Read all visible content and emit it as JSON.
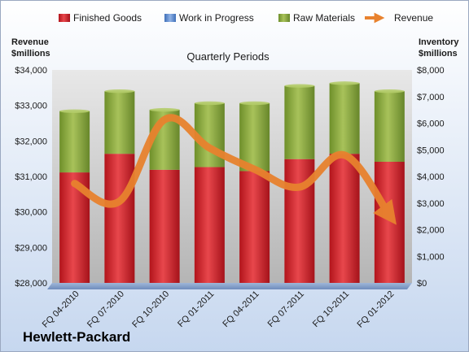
{
  "chart_data": {
    "type": "bar",
    "stacked": true,
    "subtitle": "Quarterly Periods",
    "brand": "Hewlett-Packard",
    "left_axis": {
      "title_line1": "Revenue",
      "title_line2": "$millions",
      "range": [
        28000,
        34000
      ],
      "ticks": [
        "$28,000",
        "$29,000",
        "$30,000",
        "$31,000",
        "$32,000",
        "$33,000",
        "$34,000"
      ],
      "tick_values": [
        28000,
        29000,
        30000,
        31000,
        32000,
        33000,
        34000
      ]
    },
    "right_axis": {
      "title_line1": "Inventory",
      "title_line2": "$millions",
      "range": [
        0,
        8000
      ],
      "ticks": [
        "$0",
        "$1,000",
        "$2,000",
        "$3,000",
        "$4,000",
        "$5,000",
        "$6,000",
        "$7,000",
        "$8,000"
      ],
      "tick_values": [
        0,
        1000,
        2000,
        3000,
        4000,
        5000,
        6000,
        7000,
        8000
      ]
    },
    "categories": [
      "FQ 04-2010",
      "FQ 07-2010",
      "FQ 10-2010",
      "FQ 01-2011",
      "FQ 04-2011",
      "FQ 07-2011",
      "FQ 10-2011",
      "FQ 01-2012"
    ],
    "series": [
      {
        "name": "Finished Goods",
        "axis": "right",
        "color": "#c0272d",
        "values": [
          4150,
          4850,
          4250,
          4350,
          4200,
          4650,
          4850,
          4550
        ]
      },
      {
        "name": "Work in Progress",
        "axis": "right",
        "color": "#5b8ed6",
        "values": [
          0,
          0,
          0,
          0,
          0,
          0,
          0,
          0
        ]
      },
      {
        "name": "Raw Materials",
        "axis": "right",
        "color": "#8aaa3c",
        "values": [
          2300,
          2350,
          2250,
          2400,
          2550,
          2750,
          2650,
          2650
        ]
      },
      {
        "name": "Revenue",
        "axis": "left",
        "type": "line",
        "color": "#e8822e",
        "values": [
          30800,
          30300,
          32600,
          31800,
          31200,
          30700,
          31600,
          29900
        ]
      }
    ],
    "legend_position": "top",
    "grid": false
  }
}
